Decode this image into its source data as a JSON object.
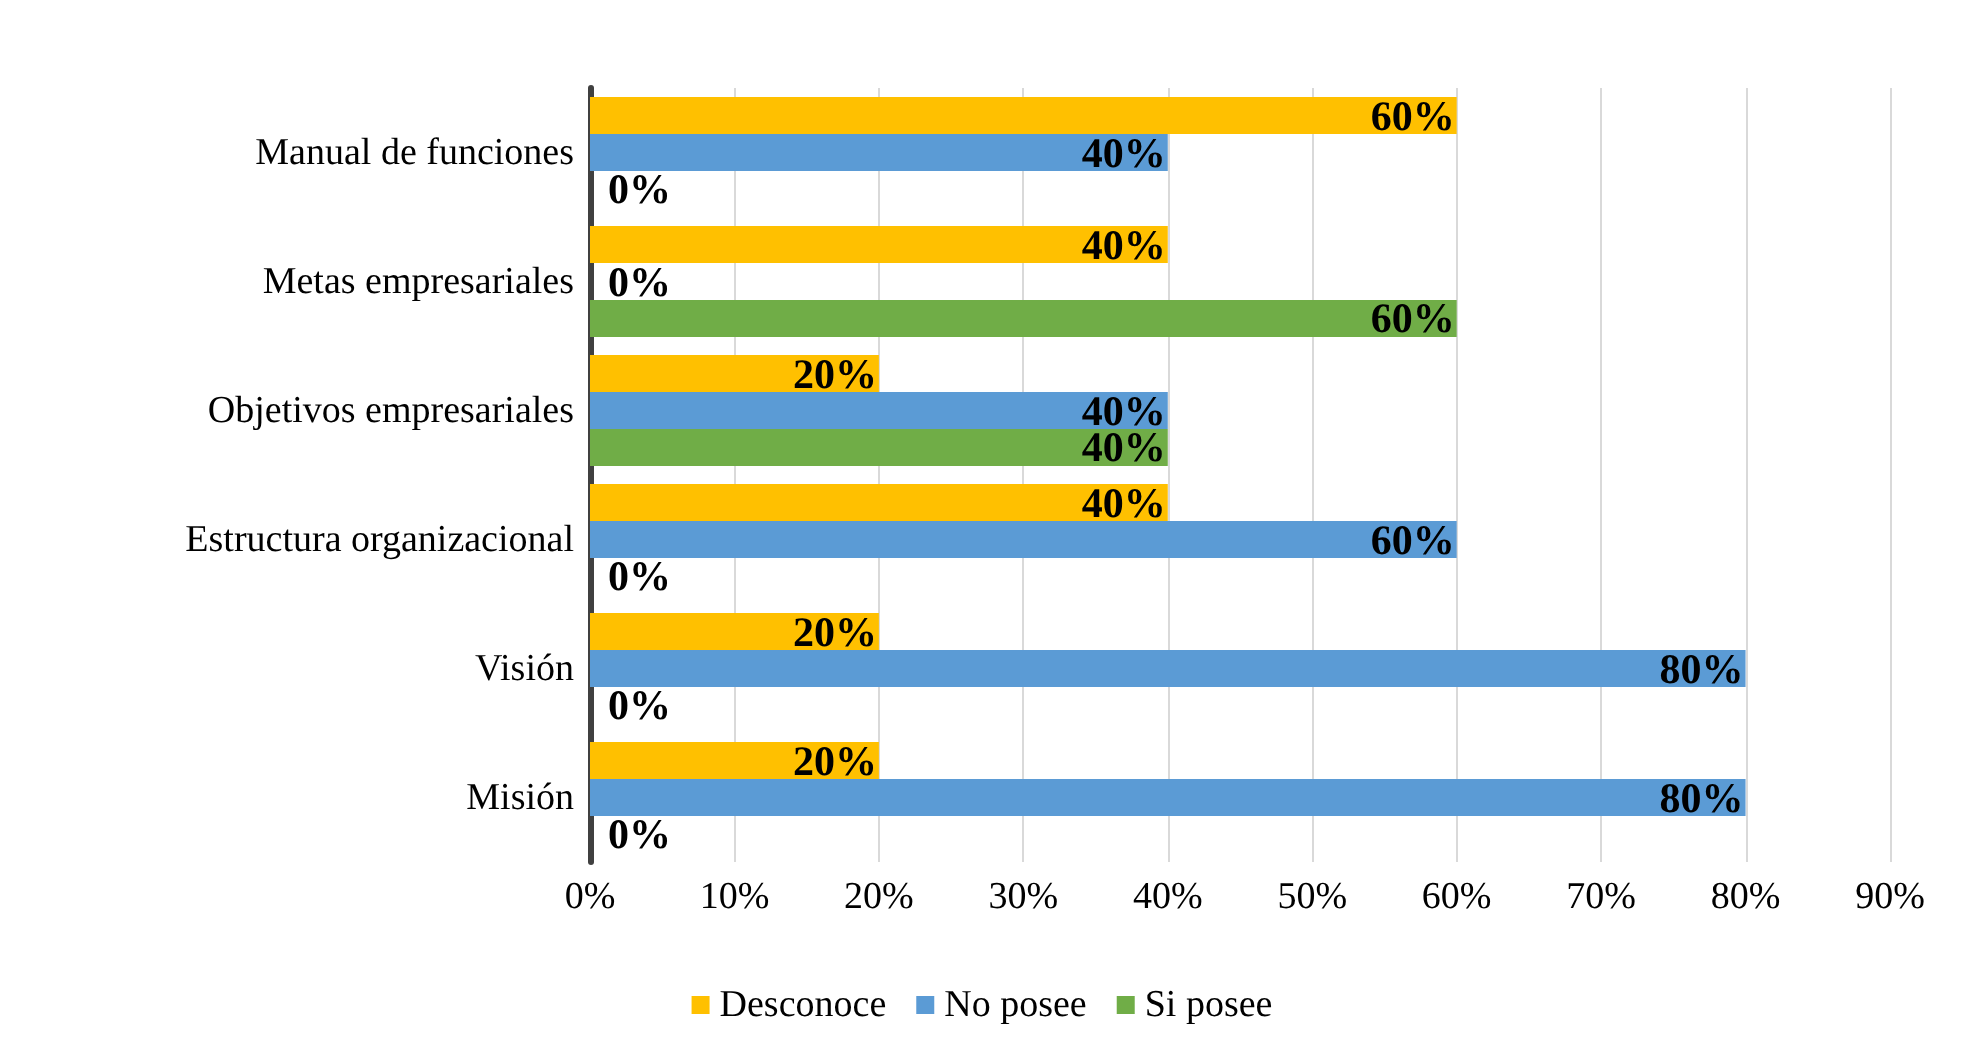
{
  "chart_data": {
    "type": "bar",
    "orientation": "horizontal",
    "categories": [
      "Manual de funciones",
      "Metas empresariales",
      "Objetivos empresariales",
      "Estructura organizacional",
      "Visión",
      "Misión"
    ],
    "series": [
      {
        "name": "Desconoce",
        "color": "#ffc000",
        "values": [
          60,
          40,
          20,
          40,
          20,
          20
        ],
        "value_labels": [
          "60%",
          "40%",
          "20%",
          "40%",
          "20%",
          "20%"
        ]
      },
      {
        "name": "No posee",
        "color": "#5b9bd5",
        "values": [
          40,
          0,
          40,
          60,
          80,
          80
        ],
        "value_labels": [
          "40%",
          "0%",
          "40%",
          "60%",
          "80%",
          "80%"
        ]
      },
      {
        "name": "Si posee",
        "color": "#70ad47",
        "values": [
          0,
          60,
          40,
          0,
          0,
          0
        ],
        "value_labels": [
          "0%",
          "60%",
          "40%",
          "0%",
          "0%",
          "0%"
        ]
      }
    ],
    "xlim": [
      0,
      90
    ],
    "xticks": [
      {
        "value": 0,
        "label": "0%"
      },
      {
        "value": 10,
        "label": "10%"
      },
      {
        "value": 20,
        "label": "20%"
      },
      {
        "value": 30,
        "label": "30%"
      },
      {
        "value": 40,
        "label": "40%"
      },
      {
        "value": 50,
        "label": "50%"
      },
      {
        "value": 60,
        "label": "60%"
      },
      {
        "value": 70,
        "label": "70%"
      },
      {
        "value": 80,
        "label": "80%"
      },
      {
        "value": 90,
        "label": "90%"
      }
    ],
    "grid": "x",
    "legend": "bottom"
  }
}
